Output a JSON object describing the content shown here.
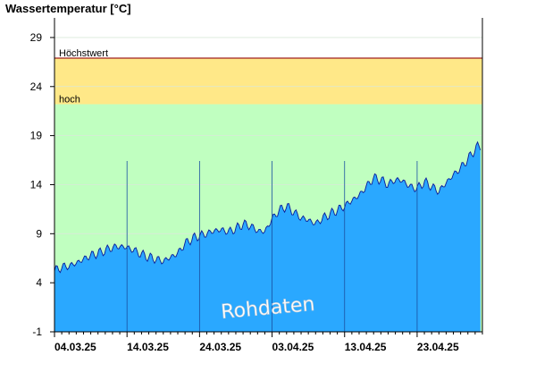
{
  "chart_data": {
    "type": "area",
    "title": "Wassertemperatur [°C]",
    "xlabel": "",
    "ylabel": "",
    "ylim": [
      -1,
      31
    ],
    "yticks": [
      -1,
      4,
      9,
      14,
      19,
      24,
      29
    ],
    "x_range": [
      "2025-03-04",
      "2025-05-02"
    ],
    "x_tick_labels": [
      "04.03.25",
      "14.03.25",
      "24.03.25",
      "03.04.25",
      "13.04.25",
      "23.04.25"
    ],
    "x_tick_dates": [
      "2025-03-04",
      "2025-03-14",
      "2025-03-24",
      "2025-04-03",
      "2025-04-13",
      "2025-04-23"
    ],
    "bands": [
      {
        "label": "",
        "from": -1,
        "to": 22.2,
        "color": "#c0ffc0"
      },
      {
        "label": "hoch",
        "from": 22.2,
        "to": 26.9,
        "color": "#ffe888"
      },
      {
        "label": "Höchstwert",
        "from": 26.9,
        "to": 26.9,
        "color": "#a02020"
      }
    ],
    "series": [
      {
        "fill_color": "#2aa8ff",
        "line_color": "#0a1a9a",
        "x": [
          "2025-03-04",
          "2025-03-05",
          "2025-03-06",
          "2025-03-07",
          "2025-03-08",
          "2025-03-09",
          "2025-03-10",
          "2025-03-11",
          "2025-03-12",
          "2025-03-13",
          "2025-03-14",
          "2025-03-15",
          "2025-03-16",
          "2025-03-17",
          "2025-03-18",
          "2025-03-19",
          "2025-03-20",
          "2025-03-21",
          "2025-03-22",
          "2025-03-23",
          "2025-03-24",
          "2025-03-25",
          "2025-03-26",
          "2025-03-27",
          "2025-03-28",
          "2025-03-29",
          "2025-03-30",
          "2025-03-31",
          "2025-04-01",
          "2025-04-02",
          "2025-04-03",
          "2025-04-04",
          "2025-04-05",
          "2025-04-06",
          "2025-04-07",
          "2025-04-08",
          "2025-04-09",
          "2025-04-10",
          "2025-04-11",
          "2025-04-12",
          "2025-04-13",
          "2025-04-14",
          "2025-04-15",
          "2025-04-16",
          "2025-04-17",
          "2025-04-18",
          "2025-04-19",
          "2025-04-20",
          "2025-04-21",
          "2025-04-22",
          "2025-04-23",
          "2025-04-24",
          "2025-04-25",
          "2025-04-26",
          "2025-04-27",
          "2025-04-28",
          "2025-04-29",
          "2025-04-30",
          "2025-05-01"
        ],
        "values": [
          5.2,
          5.6,
          5.7,
          6.0,
          6.4,
          6.8,
          7.0,
          7.3,
          7.6,
          7.7,
          7.6,
          7.3,
          6.9,
          6.6,
          6.4,
          6.2,
          6.6,
          7.0,
          8.0,
          8.5,
          8.8,
          9.0,
          9.3,
          9.4,
          9.2,
          9.5,
          10.0,
          9.8,
          9.3,
          9.2,
          10.5,
          11.4,
          11.8,
          11.2,
          10.6,
          10.4,
          10.0,
          10.6,
          11.0,
          11.4,
          11.8,
          12.4,
          12.9,
          13.8,
          14.7,
          14.5,
          14.0,
          14.5,
          14.4,
          13.8,
          13.6,
          14.3,
          13.8,
          13.3,
          14.2,
          15.0,
          15.7,
          16.6,
          17.6
        ]
      }
    ],
    "annotations": [
      {
        "text": "Rohdaten"
      }
    ],
    "grid": true,
    "legend": "none"
  }
}
